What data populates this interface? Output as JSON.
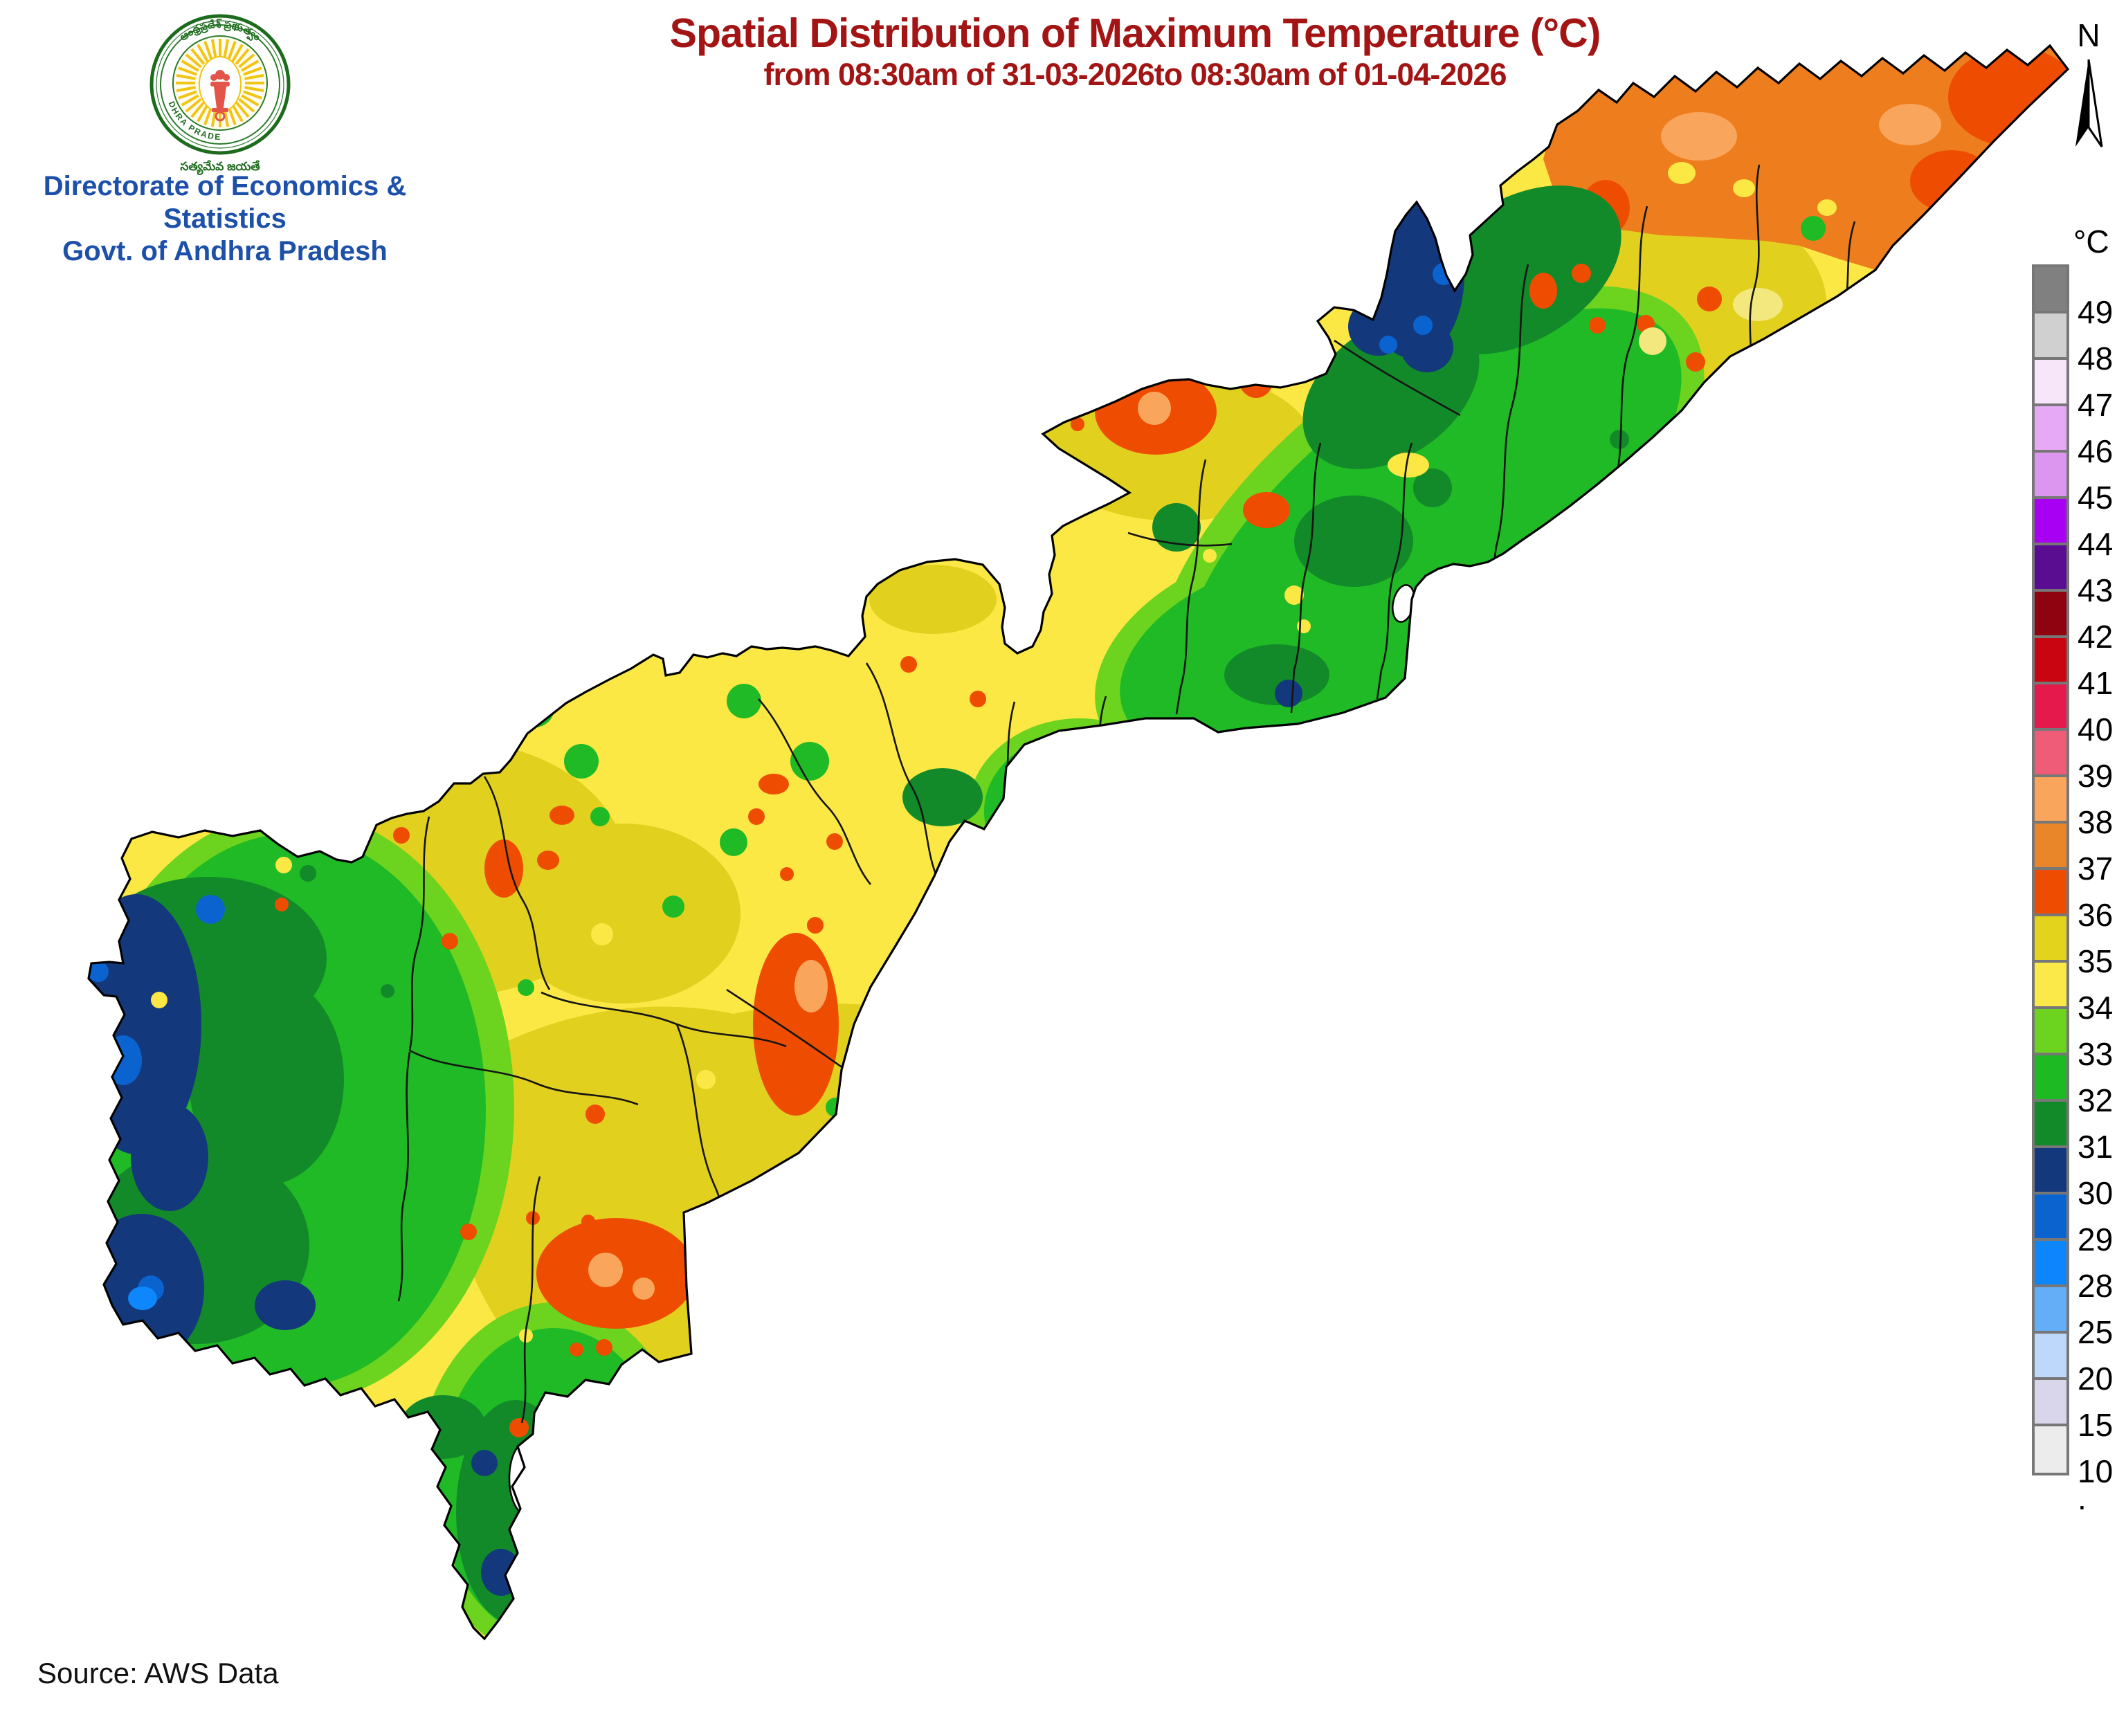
{
  "header": {
    "title": "Spatial Distribution of Maximum Temperature (°C)",
    "subtitle": "from 08:30am of 31-03-2026to 08:30am of 01-04-2026",
    "org_line1": "Directorate of Economics & Statistics",
    "org_line2": "Govt. of Andhra Pradesh",
    "logo_ring_text_top": "ఆంధ్రప్రదేశ్ ప్రభుత్వం",
    "logo_ring_text": "ANDHRA PRADESH",
    "logo_motto": "సత్యమేవ జయతే"
  },
  "north_indicator": {
    "label": "N"
  },
  "legend": {
    "unit": "°C",
    "trailing_mark": ".",
    "items": [
      {
        "label": "49",
        "color": "#808080"
      },
      {
        "label": "48",
        "color": "#d0d0d0"
      },
      {
        "label": "47",
        "color": "#f7e6fa"
      },
      {
        "label": "46",
        "color": "#e5a9f5"
      },
      {
        "label": "45",
        "color": "#dd96ef"
      },
      {
        "label": "44",
        "color": "#a800f2"
      },
      {
        "label": "43",
        "color": "#5a0d90"
      },
      {
        "label": "42",
        "color": "#8e030f"
      },
      {
        "label": "41",
        "color": "#c80511"
      },
      {
        "label": "40",
        "color": "#e6194d"
      },
      {
        "label": "39",
        "color": "#ef5c78"
      },
      {
        "label": "38",
        "color": "#f9a55c"
      },
      {
        "label": "37",
        "color": "#ea862a"
      },
      {
        "label": "36",
        "color": "#ee4d01"
      },
      {
        "label": "35",
        "color": "#e4d31d"
      },
      {
        "label": "34",
        "color": "#fbe94a"
      },
      {
        "label": "33",
        "color": "#6cd41f"
      },
      {
        "label": "32",
        "color": "#1eba24"
      },
      {
        "label": "31",
        "color": "#128a2a"
      },
      {
        "label": "30",
        "color": "#14387c"
      },
      {
        "label": "29",
        "color": "#0b63cf"
      },
      {
        "label": "28",
        "color": "#0c86fa"
      },
      {
        "label": "25",
        "color": "#64aef8"
      },
      {
        "label": "20",
        "color": "#bdd8fb"
      },
      {
        "label": "15",
        "color": "#d9d6ec"
      },
      {
        "label": "10",
        "color": "#ececec"
      }
    ]
  },
  "footer": {
    "source": "Source: AWS Data"
  }
}
